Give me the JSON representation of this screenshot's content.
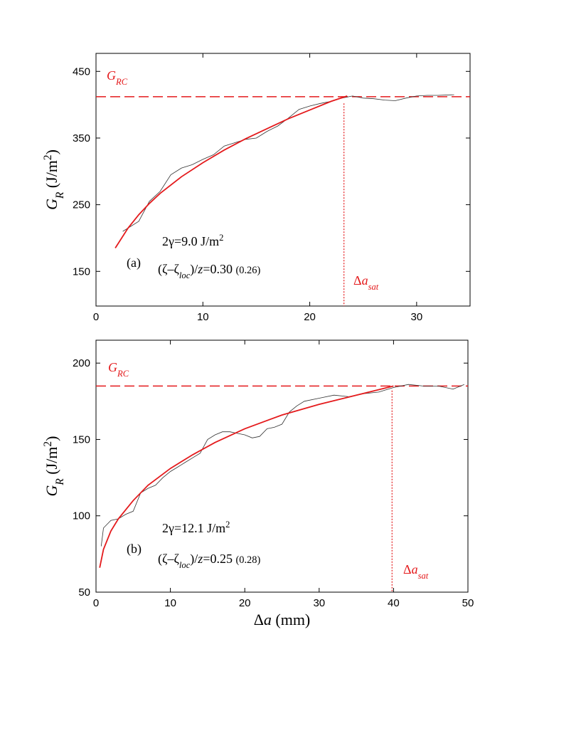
{
  "chart_data": [
    {
      "type": "line",
      "panel": "a",
      "xlim": [
        0,
        35
      ],
      "ylim": [
        98,
        477
      ],
      "xticks": [
        0,
        10,
        20,
        30
      ],
      "yticks": [
        150,
        250,
        350,
        450
      ],
      "y_label": [
        {
          "text": "G",
          "italic": true
        },
        {
          "text": "R",
          "sub": true,
          "italic": true
        },
        {
          "text": " (J/m"
        },
        {
          "text": "2",
          "sup": true
        },
        {
          "text": ")"
        }
      ],
      "series": [
        {
          "color": "#333333",
          "width": 0.8,
          "x": [
            2.5,
            4,
            5,
            6,
            7,
            8,
            9,
            10,
            11,
            12,
            13,
            14,
            15,
            16,
            17,
            18,
            19,
            20,
            21,
            22,
            23,
            24,
            25,
            26,
            27,
            28,
            29,
            30,
            31,
            32,
            33.5
          ],
          "values": [
            210,
            225,
            255,
            270,
            295,
            305,
            310,
            318,
            325,
            338,
            343,
            348,
            350,
            360,
            368,
            380,
            393,
            398,
            402,
            405,
            410,
            413,
            410,
            409,
            407,
            406,
            410,
            413,
            414,
            414,
            415
          ]
        },
        {
          "color": "#e41a1c",
          "width": 1.8,
          "x": [
            1.8,
            3,
            4,
            5,
            6,
            8,
            10,
            12,
            14,
            16,
            18,
            20,
            22,
            23.5
          ],
          "values": [
            185,
            215,
            235,
            252,
            267,
            292,
            313,
            332,
            349,
            364,
            379,
            392,
            405,
            413
          ]
        }
      ],
      "hline": {
        "value": 412,
        "color": "#e41a1c"
      },
      "vline": {
        "value": 23.2,
        "top": 402,
        "color": "#e41a1c"
      },
      "annotations": [
        {
          "color": "#e41a1c",
          "parts": [
            {
              "text": "G",
              "italic": true
            },
            {
              "text": "RC",
              "sub": true,
              "italic": true
            }
          ]
        },
        {
          "color": "#000000",
          "parts": [
            {
              "text": "(a)"
            }
          ]
        },
        {
          "color": "#000000",
          "parts": [
            {
              "text": "2γ=9.0 J/m"
            },
            {
              "text": "2",
              "sup": true
            }
          ]
        },
        {
          "color": "#000000",
          "parts": [
            {
              "text": "(ζ–ζ"
            },
            {
              "text": "loc",
              "sub": true,
              "italic": true
            },
            {
              "text": ")/"
            },
            {
              "text": "z",
              "italic": true
            },
            {
              "text": "=0.30 "
            },
            {
              "text": "(0.26)",
              "small": true
            }
          ]
        },
        {
          "color": "#e41a1c",
          "parts": [
            {
              "text": "Δ"
            },
            {
              "text": "a",
              "italic": true
            },
            {
              "text": "sat",
              "sub": true,
              "italic": true
            }
          ]
        }
      ]
    },
    {
      "type": "line",
      "panel": "b",
      "xlim": [
        0,
        50
      ],
      "ylim": [
        50,
        215
      ],
      "xticks": [
        0,
        10,
        20,
        30,
        40,
        50
      ],
      "yticks": [
        50,
        100,
        150,
        200
      ],
      "y_label": [
        {
          "text": "G",
          "italic": true
        },
        {
          "text": "R",
          "sub": true,
          "italic": true
        },
        {
          "text": " (J/m"
        },
        {
          "text": "2",
          "sup": true
        },
        {
          "text": ")"
        }
      ],
      "x_label": [
        {
          "text": "Δ"
        },
        {
          "text": "a",
          "italic": true
        },
        {
          "text": " (mm)"
        }
      ],
      "series": [
        {
          "color": "#333333",
          "width": 0.8,
          "x": [
            0.7,
            1,
            2,
            3,
            4,
            5,
            6,
            7,
            8,
            9,
            10,
            11,
            12,
            13,
            14,
            15,
            16,
            17,
            18,
            19,
            20,
            21,
            22,
            23,
            24,
            25,
            26,
            27,
            28,
            30,
            32,
            34,
            36,
            38,
            40,
            42,
            44,
            46,
            48,
            49.5
          ],
          "values": [
            80,
            92,
            97,
            98,
            101,
            103,
            115,
            118,
            120,
            125,
            129,
            132,
            135,
            138,
            141,
            150,
            153,
            155,
            155,
            154,
            153,
            151,
            152,
            157,
            158,
            160,
            168,
            172,
            175,
            177,
            179,
            178,
            180,
            181,
            184,
            186,
            185,
            185,
            183,
            186
          ]
        },
        {
          "color": "#e41a1c",
          "width": 1.8,
          "x": [
            0.5,
            1,
            2,
            3,
            5,
            7,
            10,
            13,
            16,
            20,
            25,
            30,
            35,
            40
          ],
          "values": [
            66,
            78,
            90,
            98,
            110,
            120,
            131,
            140,
            148,
            157,
            166,
            173,
            179,
            185
          ]
        }
      ],
      "hline": {
        "value": 185,
        "color": "#e41a1c"
      },
      "vline": {
        "value": 39.8,
        "top": 182,
        "color": "#e41a1c"
      },
      "annotations": [
        {
          "color": "#e41a1c",
          "parts": [
            {
              "text": "G",
              "italic": true
            },
            {
              "text": "RC",
              "sub": true,
              "italic": true
            }
          ]
        },
        {
          "color": "#000000",
          "parts": [
            {
              "text": "(b)"
            }
          ]
        },
        {
          "color": "#000000",
          "parts": [
            {
              "text": "2γ=12.1 J/m"
            },
            {
              "text": "2",
              "sup": true
            }
          ]
        },
        {
          "color": "#000000",
          "parts": [
            {
              "text": "(ζ–ζ"
            },
            {
              "text": "loc",
              "sub": true,
              "italic": true
            },
            {
              "text": ")/"
            },
            {
              "text": "z",
              "italic": true
            },
            {
              "text": "=0.25 "
            },
            {
              "text": "(0.28)",
              "small": true
            }
          ]
        },
        {
          "color": "#e41a1c",
          "parts": [
            {
              "text": "Δ"
            },
            {
              "text": "a",
              "italic": true
            },
            {
              "text": "sat",
              "sub": true,
              "italic": true
            }
          ]
        }
      ]
    }
  ]
}
